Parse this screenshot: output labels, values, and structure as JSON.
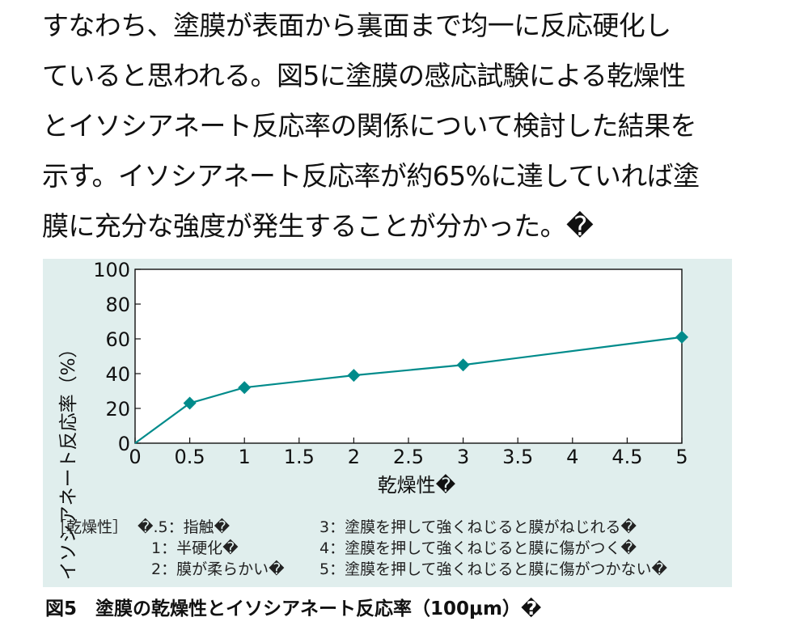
{
  "paragraph": {
    "lines": [
      "すなわち、塗膜が表面から裏面まで均一に反応硬化し",
      "ていると思われる。図5に塗膜の感応試験による乾燥性",
      "とイソシアネート反応率の関係について検討した結果を",
      "示す。イソシアネート反応率が約65%に達していれば塗",
      "膜に充分な強度が発生することが分かった。�"
    ]
  },
  "chart_data": {
    "type": "line",
    "xlabel": "乾燥性�",
    "ylabel": "イソシアネート反応率（%）",
    "xlim": [
      0,
      5
    ],
    "ylim": [
      0,
      100
    ],
    "x_ticks": [
      "0",
      "0.5",
      "1",
      "1.5",
      "2",
      "2.5",
      "3",
      "3.5",
      "4",
      "4.5",
      "5"
    ],
    "y_ticks": [
      "0",
      "20",
      "40",
      "60",
      "80",
      "100"
    ],
    "series": [
      {
        "color": "#008b8b",
        "marker": "diamond",
        "points": [
          {
            "x": 0,
            "y": 0
          },
          {
            "x": 0.5,
            "y": 23
          },
          {
            "x": 1,
            "y": 32
          },
          {
            "x": 2,
            "y": 39
          },
          {
            "x": 3,
            "y": 45
          },
          {
            "x": 5,
            "y": 61
          }
        ]
      }
    ]
  },
  "legend_notes": {
    "head": "［乾燥性］",
    "left": [
      "�.5：指触�",
      "1：半硬化�",
      "2：膜が柔らかい�"
    ],
    "right": [
      "3：塗膜を押して強くねじると膜がねじれる�",
      "4：塗膜を押して強くねじると膜に傷がつく�",
      "5：塗膜を押して強くねじると膜に傷がつかない�"
    ]
  },
  "caption": "図5　塗膜の乾燥性とイソシアネート反応率（100μm）�",
  "colors": {
    "panel_bg": "#e0eeed",
    "series": "#008b8b"
  }
}
